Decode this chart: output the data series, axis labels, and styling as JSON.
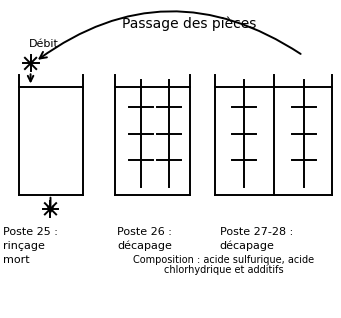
{
  "title": "Passage des pièces",
  "bg_color": "#ffffff",
  "line_color": "#000000",
  "debit_label": "Débit",
  "label1_line1": "Poste 25 :",
  "label1_line2": "rinçage",
  "label1_line3": "mort",
  "label2_line1": "Poste 26 :",
  "label2_line2": "décapage",
  "label3_line1": "Poste 27-28 :",
  "label3_line2": "décapage",
  "composition_text": "Composition : acide sulfurique, acide\nchlorkydrique et additifs",
  "composition_line1": "Composition : acide sulfurique, acide",
  "composition_line2": "chlorhydrique et additifs",
  "font_size_title": 10,
  "font_size_label": 8,
  "font_size_comp": 7
}
